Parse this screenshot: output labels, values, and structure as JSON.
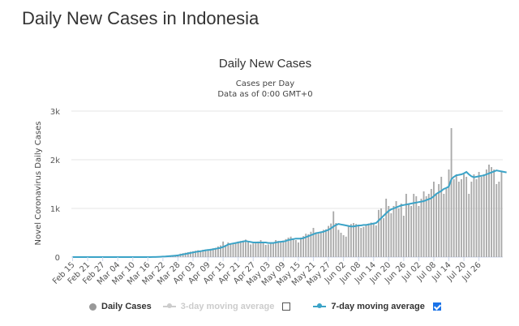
{
  "page": {
    "title": "Daily New Cases in Indonesia"
  },
  "chart_data": {
    "type": "bar",
    "title": "Daily New Cases",
    "subtitle_1": "Cases per Day",
    "subtitle_2": "Data as of 0:00 GMT+0",
    "ylabel": "Novel Coronavirus Daily Cases",
    "ylim": [
      0,
      3000
    ],
    "yticks": [
      0,
      1000,
      2000,
      3000
    ],
    "ytick_labels": [
      "0",
      "1k",
      "2k",
      "3k"
    ],
    "grid": true,
    "legend_position": "bottom",
    "xtick_labels": [
      "Feb 15",
      "Feb 21",
      "Feb 27",
      "Mar 04",
      "Mar 10",
      "Mar 16",
      "Mar 22",
      "Mar 28",
      "Apr 03",
      "Apr 09",
      "Apr 15",
      "Apr 21",
      "Apr 27",
      "May 03",
      "May 09",
      "May 15",
      "May 21",
      "May 27",
      "Jun 02",
      "Jun 08",
      "Jun 14",
      "Jun 20",
      "Jun 26",
      "Jul 02",
      "Jul 08",
      "Jul 14",
      "Jul 20",
      "Jul 26"
    ],
    "series": [
      {
        "name": "Daily Cases",
        "kind": "bar",
        "color": "#aaaaaa",
        "values": [
          0,
          0,
          0,
          0,
          0,
          0,
          0,
          0,
          0,
          0,
          0,
          0,
          0,
          0,
          0,
          0,
          0,
          0,
          0,
          0,
          2,
          0,
          0,
          0,
          0,
          2,
          0,
          0,
          2,
          2,
          4,
          3,
          5,
          8,
          10,
          15,
          17,
          20,
          25,
          30,
          35,
          40,
          50,
          70,
          80,
          90,
          100,
          110,
          120,
          130,
          140,
          130,
          150,
          155,
          160,
          170,
          180,
          190,
          220,
          240,
          320,
          250,
          300,
          260,
          290,
          300,
          320,
          330,
          340,
          360,
          310,
          260,
          280,
          300,
          320,
          350,
          290,
          250,
          260,
          280,
          300,
          350,
          330,
          300,
          340,
          370,
          400,
          420,
          380,
          350,
          300,
          400,
          430,
          480,
          470,
          520,
          600,
          510,
          480,
          520,
          560,
          570,
          640,
          690,
          940,
          700,
          560,
          500,
          450,
          420,
          650,
          680,
          700,
          680,
          660,
          600,
          620,
          670,
          690,
          710,
          680,
          650,
          970,
          1000,
          800,
          1200,
          1050,
          900,
          1050,
          1150,
          1000,
          1100,
          850,
          1300,
          1100,
          1050,
          1300,
          1250,
          1050,
          1200,
          1350,
          1250,
          1300,
          1400,
          1550,
          1300,
          1500,
          1650,
          1300,
          1400,
          1800,
          2650,
          1600,
          1700,
          1550,
          1600,
          1700,
          1650,
          1300,
          1550,
          1700,
          1600,
          1750,
          1650,
          1700,
          1800,
          1900,
          1850,
          1800,
          1500,
          1550,
          1750
        ]
      },
      {
        "name": "3-day moving average",
        "kind": "line",
        "color": "#cccccc",
        "enabled": false
      },
      {
        "name": "7-day moving average",
        "kind": "line",
        "color": "#3ba3c7",
        "enabled": true,
        "values": [
          0,
          0,
          0,
          0,
          0,
          0,
          0,
          0,
          0,
          0,
          0,
          0,
          0,
          0,
          0,
          0,
          0,
          0,
          0,
          0,
          0,
          0,
          0,
          0,
          0,
          0,
          0,
          0,
          0,
          0,
          1,
          1,
          2,
          3,
          5,
          7,
          10,
          12,
          16,
          20,
          25,
          30,
          35,
          45,
          55,
          65,
          75,
          85,
          95,
          105,
          115,
          120,
          130,
          140,
          145,
          150,
          160,
          170,
          180,
          190,
          210,
          230,
          260,
          270,
          280,
          290,
          300,
          310,
          320,
          330,
          320,
          310,
          300,
          300,
          300,
          300,
          300,
          300,
          290,
          290,
          290,
          300,
          310,
          315,
          320,
          330,
          350,
          360,
          370,
          380,
          380,
          380,
          390,
          410,
          430,
          450,
          470,
          490,
          500,
          510,
          520,
          540,
          560,
          590,
          630,
          660,
          680,
          670,
          660,
          650,
          640,
          630,
          630,
          640,
          650,
          650,
          660,
          660,
          670,
          680,
          690,
          700,
          750,
          800,
          850,
          900,
          950,
          980,
          1000,
          1020,
          1040,
          1060,
          1070,
          1080,
          1090,
          1100,
          1110,
          1120,
          1130,
          1140,
          1150,
          1170,
          1190,
          1210,
          1250,
          1300,
          1330,
          1360,
          1400,
          1420,
          1450,
          1600,
          1650,
          1680,
          1690,
          1700,
          1720,
          1750,
          1700,
          1660,
          1640,
          1650,
          1660,
          1670,
          1680,
          1700,
          1720,
          1740,
          1760,
          1780,
          1770,
          1760,
          1750,
          1740
        ]
      }
    ]
  },
  "legend": {
    "items": [
      {
        "label": "Daily Cases",
        "color": "#999999",
        "shape": "dot",
        "checkbox": null
      },
      {
        "label": "3-day moving average",
        "color": "#cccccc",
        "shape": "line",
        "checkbox": false
      },
      {
        "label": "7-day moving average",
        "color": "#3ba3c7",
        "shape": "line",
        "checkbox": true
      }
    ]
  }
}
